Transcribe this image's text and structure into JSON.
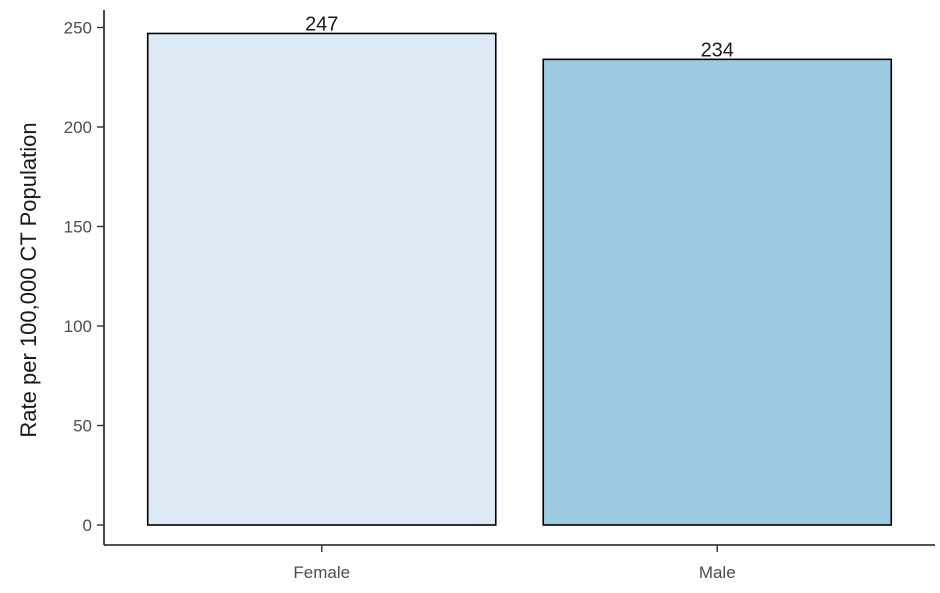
{
  "chart_data": {
    "type": "bar",
    "title": "",
    "xlabel": "",
    "ylabel": "Rate per 100,000 CT Population",
    "categories": [
      "Female",
      "Male"
    ],
    "values": [
      247,
      234
    ],
    "value_labels": [
      "247",
      "234"
    ],
    "bar_colors": [
      "#deebf7",
      "#9ecae1"
    ],
    "bar_outline_color": "#000000",
    "ylim": [
      0,
      260
    ],
    "yticks": [
      0,
      50,
      100,
      150,
      200,
      250
    ],
    "ytick_labels": [
      "0",
      "50",
      "100",
      "150",
      "200",
      "250"
    ],
    "grid": false,
    "legend": "none"
  }
}
